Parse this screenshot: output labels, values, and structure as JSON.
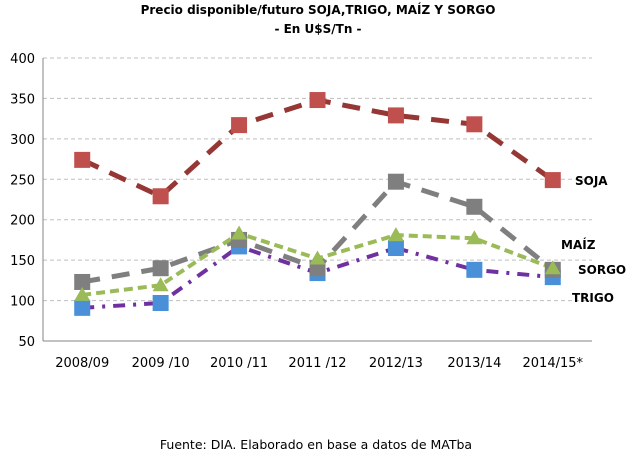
{
  "chart_data": {
    "type": "line",
    "title": "Precio disponible/futuro SOJA,TRIGO, MAÍZ Y SORGO",
    "subtitle": "- En U$S/Tn -",
    "xlabel": "",
    "ylabel": "",
    "ylim": [
      50,
      400
    ],
    "yticks": [
      50,
      100,
      150,
      200,
      250,
      300,
      350,
      400
    ],
    "grid": true,
    "legend": "inline-right",
    "categories": [
      "2008/09",
      "2009 /10",
      "2010 /11",
      "2011 /12",
      "2012/13",
      "2013/14",
      "2014/15*"
    ],
    "series": [
      {
        "name": "SOJA",
        "values": [
          274,
          229,
          317,
          348,
          329,
          318,
          249
        ],
        "color": "#953735",
        "marker_color": "#C0504D",
        "marker": "square",
        "dash": "long-dash"
      },
      {
        "name": "MAÍZ",
        "values": [
          123,
          140,
          175,
          140,
          247,
          216,
          138
        ],
        "color": "#7F7F7F",
        "marker_color": "#7F7F7F",
        "marker": "square",
        "dash": "long-dash"
      },
      {
        "name": "SORGO",
        "values": [
          107,
          119,
          183,
          152,
          181,
          177,
          140
        ],
        "color": "#9BBB59",
        "marker_color": "#9BBB59",
        "marker": "triangle",
        "dash": "dash"
      },
      {
        "name": "TRIGO",
        "values": [
          91,
          97,
          167,
          134,
          165,
          138,
          129
        ],
        "color": "#7030A0",
        "marker_color": "#4A90D9",
        "marker": "square",
        "dash": "dash-dot"
      }
    ],
    "source": "Fuente: DIA. Elaborado en base a datos de MATba"
  }
}
